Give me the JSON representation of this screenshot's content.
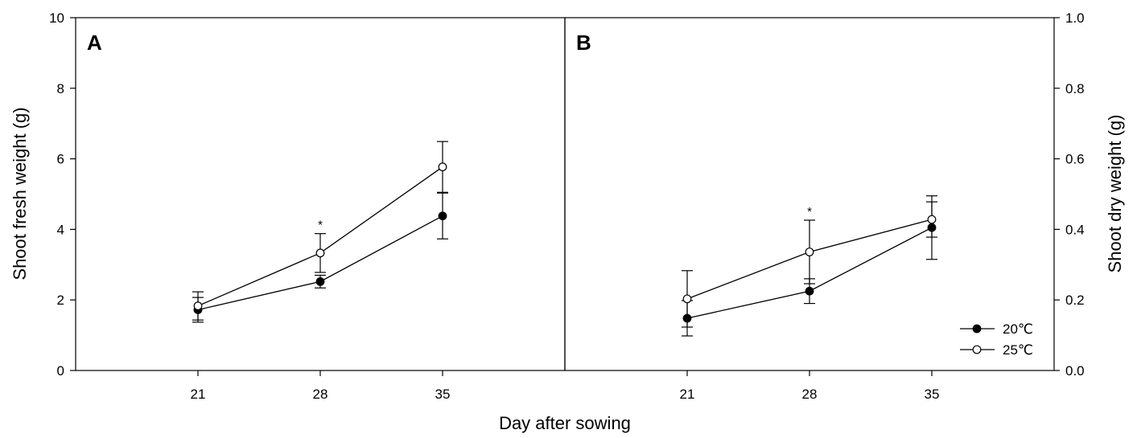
{
  "chart_data": {
    "type": "line",
    "xlabel": "Day after sowing",
    "x": [
      21,
      28,
      35
    ],
    "xticks": [
      "21",
      "28",
      "35"
    ],
    "legend": {
      "placement": "bottom-right of panel B",
      "entries": [
        {
          "label": "20℃",
          "marker": "filled-circle",
          "color": "#000000"
        },
        {
          "label": "25℃",
          "marker": "open-circle",
          "color": "#000000"
        }
      ]
    },
    "panels": [
      {
        "label": "A",
        "ylabel": "Shoot fresh weight (g)",
        "ylim": [
          0,
          10
        ],
        "yticks": [
          "0",
          "2",
          "4",
          "6",
          "8",
          "10"
        ],
        "y_axis_side": "left",
        "series": [
          {
            "name": "20℃",
            "values": [
              1.72,
              2.52,
              4.38
            ],
            "errors": [
              0.35,
              0.18,
              0.65
            ]
          },
          {
            "name": "25℃",
            "values": [
              1.83,
              3.33,
              5.77
            ],
            "errors": [
              0.4,
              0.55,
              0.72
            ]
          }
        ],
        "significance": [
          {
            "x": 28,
            "mark": "*"
          }
        ]
      },
      {
        "label": "B",
        "ylabel": "Shoot dry weight (g)",
        "ylim": [
          0,
          1.0
        ],
        "yticks": [
          "0.0",
          "0.2",
          "0.4",
          "0.6",
          "0.8",
          "1.0"
        ],
        "y_axis_side": "right",
        "series": [
          {
            "name": "20℃",
            "values": [
              0.148,
              0.225,
              0.405
            ],
            "errors": [
              0.05,
              0.035,
              0.09
            ]
          },
          {
            "name": "25℃",
            "values": [
              0.203,
              0.336,
              0.428
            ],
            "errors": [
              0.08,
              0.09,
              0.05
            ]
          }
        ],
        "significance": [
          {
            "x": 28,
            "mark": "*"
          }
        ]
      }
    ]
  }
}
